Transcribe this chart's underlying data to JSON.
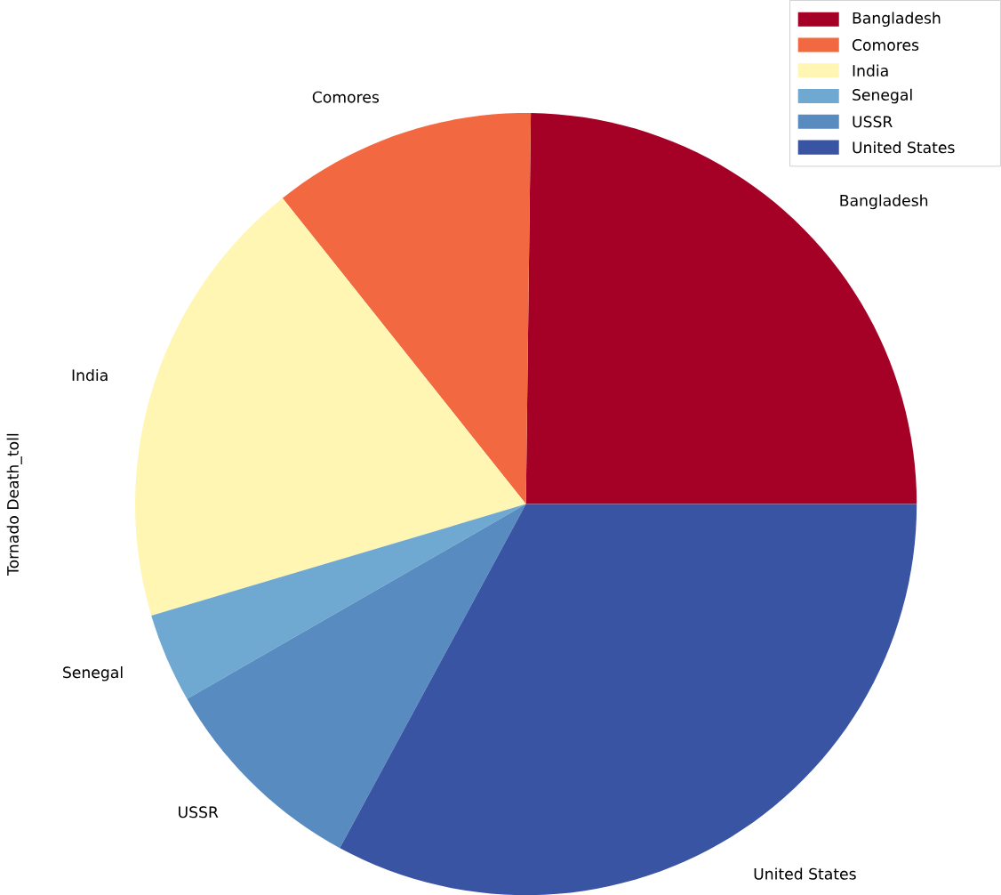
{
  "chart_data": {
    "type": "pie",
    "ylabel": "Tornado Death_toll",
    "legend": "top right",
    "categories": [
      "Bangladesh",
      "Comores",
      "India",
      "Senegal",
      "USSR",
      "United States"
    ],
    "values": [
      24.8,
      10.9,
      18.9,
      3.7,
      8.8,
      32.9
    ],
    "colors": [
      "#a50026",
      "#f26841",
      "#fff6b3",
      "#6fa8d0",
      "#588bc0",
      "#3a54a4"
    ]
  }
}
